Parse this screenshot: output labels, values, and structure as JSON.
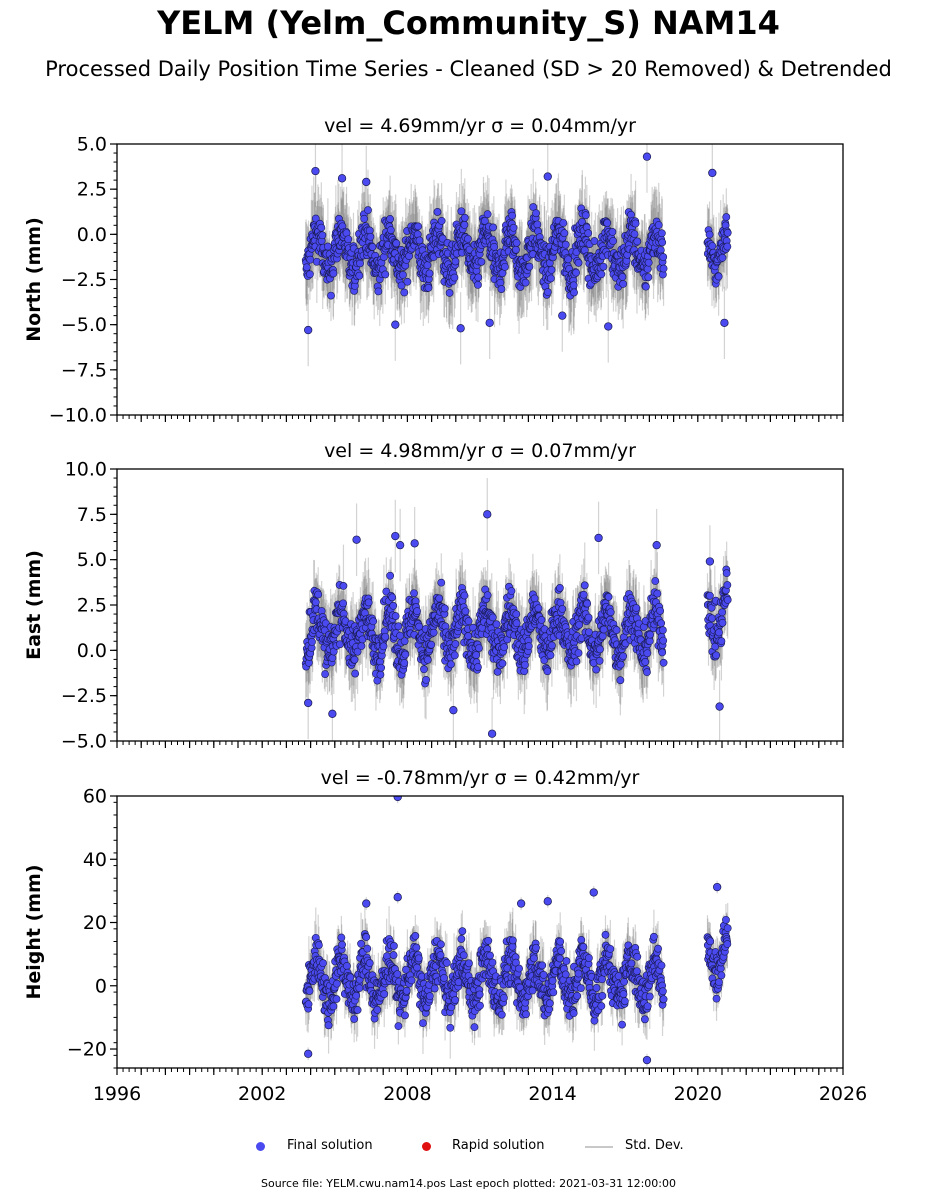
{
  "title": "YELM (Yelm_Community_S) NAM14",
  "subtitle": "Processed Daily Position Time Series - Cleaned (SD > 20 Removed) & Detrended",
  "chart_data": [
    {
      "type": "scatter",
      "panel": "north",
      "velocity_label": "vel = 4.69mm/yr   σ = 0.04mm/yr",
      "ylabel": "North (mm)",
      "xlim": [
        1996,
        2026
      ],
      "ylim": [
        -10,
        5
      ],
      "yticks": [
        5.0,
        2.5,
        0.0,
        -2.5,
        -5.0,
        -7.5,
        -10.0
      ],
      "ytick_labels": [
        "5.0",
        "2.5",
        "0.0",
        "−2.5",
        "−5.0",
        "−7.5",
        "−10.0"
      ],
      "segments": [
        {
          "start": 2003.8,
          "end": 2018.6,
          "mean": -1.0,
          "spread": 1.4,
          "err": 1.8
        },
        {
          "start": 2020.4,
          "end": 2021.25,
          "mean": -0.8,
          "spread": 1.2,
          "err": 1.6
        }
      ],
      "outliers": [
        [
          2003.9,
          -5.3
        ],
        [
          2004.2,
          3.5
        ],
        [
          2005.3,
          3.1
        ],
        [
          2006.3,
          2.9
        ],
        [
          2007.5,
          -5.0
        ],
        [
          2010.2,
          -5.2
        ],
        [
          2011.4,
          -4.9
        ],
        [
          2013.8,
          3.2
        ],
        [
          2014.4,
          -4.5
        ],
        [
          2016.3,
          -5.1
        ],
        [
          2017.9,
          4.3
        ],
        [
          2020.6,
          3.4
        ],
        [
          2021.1,
          -4.9
        ]
      ]
    },
    {
      "type": "scatter",
      "panel": "east",
      "velocity_label": "vel = 4.98mm/yr   σ = 0.07mm/yr",
      "ylabel": "East (mm)",
      "xlim": [
        1996,
        2026
      ],
      "ylim": [
        -5,
        10
      ],
      "yticks": [
        10.0,
        7.5,
        5.0,
        2.5,
        0.0,
        -2.5,
        -5.0
      ],
      "ytick_labels": [
        "10.0",
        "7.5",
        "5.0",
        "2.5",
        "0.0",
        "−2.5",
        "−5.0"
      ],
      "segments": [
        {
          "start": 2003.8,
          "end": 2018.6,
          "mean": 1.0,
          "spread": 1.5,
          "err": 1.6
        },
        {
          "start": 2020.4,
          "end": 2021.25,
          "mean": 2.0,
          "spread": 1.6,
          "err": 1.5
        }
      ],
      "outliers": [
        [
          2003.9,
          -2.9
        ],
        [
          2004.9,
          -3.5
        ],
        [
          2005.9,
          6.1
        ],
        [
          2007.5,
          6.3
        ],
        [
          2007.7,
          5.8
        ],
        [
          2008.3,
          5.9
        ],
        [
          2009.9,
          -3.3
        ],
        [
          2011.3,
          7.5
        ],
        [
          2011.5,
          -4.6
        ],
        [
          2015.9,
          6.2
        ],
        [
          2018.3,
          5.8
        ],
        [
          2020.5,
          4.9
        ],
        [
          2020.9,
          -3.1
        ]
      ]
    },
    {
      "type": "scatter",
      "panel": "height",
      "velocity_label": "vel = -0.78mm/yr   σ = 0.42mm/yr",
      "ylabel": "Height (mm)",
      "xlim": [
        1996,
        2026
      ],
      "ylim": [
        -26,
        60
      ],
      "yticks": [
        60,
        40,
        20,
        0,
        -20
      ],
      "ytick_labels": [
        "60",
        "40",
        "20",
        "0",
        "−20"
      ],
      "xticks": [
        1996,
        2002,
        2008,
        2014,
        2020,
        2026
      ],
      "segments": [
        {
          "start": 2003.8,
          "end": 2018.6,
          "mean": 2.0,
          "spread": 8.5,
          "err": 7.0
        },
        {
          "start": 2020.4,
          "end": 2021.25,
          "mean": 10.0,
          "spread": 8.0,
          "err": 6.0
        }
      ],
      "outliers": [
        [
          2007.6,
          59.7
        ],
        [
          2003.9,
          -21.5
        ],
        [
          2007.6,
          28.0
        ],
        [
          2015.7,
          29.5
        ],
        [
          2013.8,
          26.7
        ],
        [
          2017.9,
          -23.5
        ],
        [
          2006.3,
          26.0
        ],
        [
          2020.8,
          31.2
        ],
        [
          2012.7,
          26.0
        ]
      ]
    }
  ],
  "legend": {
    "items": [
      {
        "label": "Final solution",
        "color": "#4a4af0"
      },
      {
        "label": "Rapid solution",
        "color": "#e01010"
      },
      {
        "label": "Std. Dev.",
        "color": "#c8c8c8"
      }
    ]
  },
  "source_text": "Source file: YELM.cwu.nam14.pos  Last epoch plotted: 2021-03-31 12:00:00"
}
